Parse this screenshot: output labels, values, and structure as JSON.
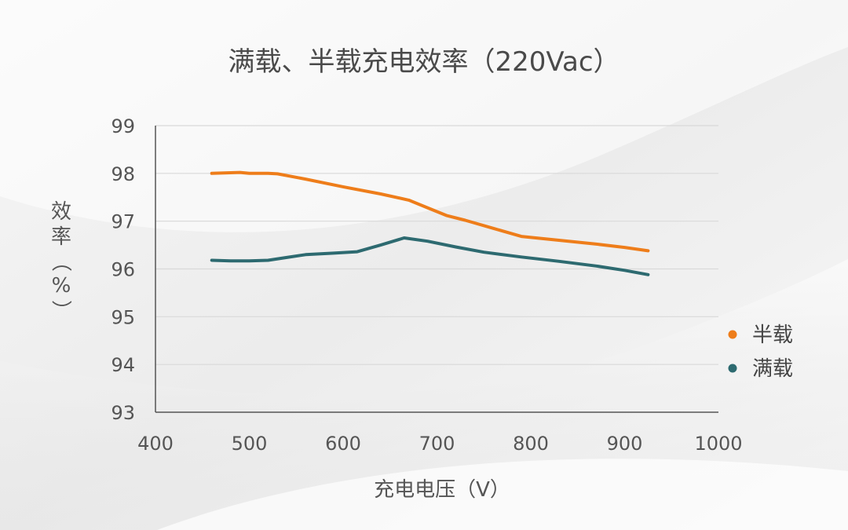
{
  "chart_data": {
    "type": "line",
    "title": "满载、半载充电效率（220Vac）",
    "xlabel": "充电电压（V）",
    "ylabel": "效率（%）",
    "xlim": [
      400,
      1000
    ],
    "ylim": [
      93,
      99
    ],
    "x_ticks": [
      400,
      500,
      600,
      700,
      800,
      900,
      1000
    ],
    "y_ticks": [
      93,
      94,
      95,
      96,
      97,
      98,
      99
    ],
    "grid": "horizontal",
    "legend_position": "right",
    "series": [
      {
        "name": "半载",
        "color": "#ee7d1a",
        "x": [
          460,
          490,
          500,
          520,
          530,
          560,
          600,
          640,
          670,
          690,
          710,
          730,
          760,
          790,
          830,
          870,
          900,
          925
        ],
        "y": [
          98.0,
          98.02,
          98.0,
          98.0,
          97.99,
          97.88,
          97.72,
          97.57,
          97.44,
          97.28,
          97.12,
          97.02,
          96.85,
          96.68,
          96.6,
          96.52,
          96.45,
          96.38
        ]
      },
      {
        "name": "满载",
        "color": "#2d6a70",
        "x": [
          460,
          480,
          500,
          520,
          540,
          560,
          590,
          615,
          640,
          665,
          690,
          720,
          750,
          790,
          830,
          870,
          900,
          925
        ],
        "y": [
          96.18,
          96.17,
          96.17,
          96.18,
          96.24,
          96.3,
          96.33,
          96.36,
          96.5,
          96.65,
          96.58,
          96.46,
          96.35,
          96.25,
          96.16,
          96.06,
          95.97,
          95.88
        ]
      }
    ]
  }
}
